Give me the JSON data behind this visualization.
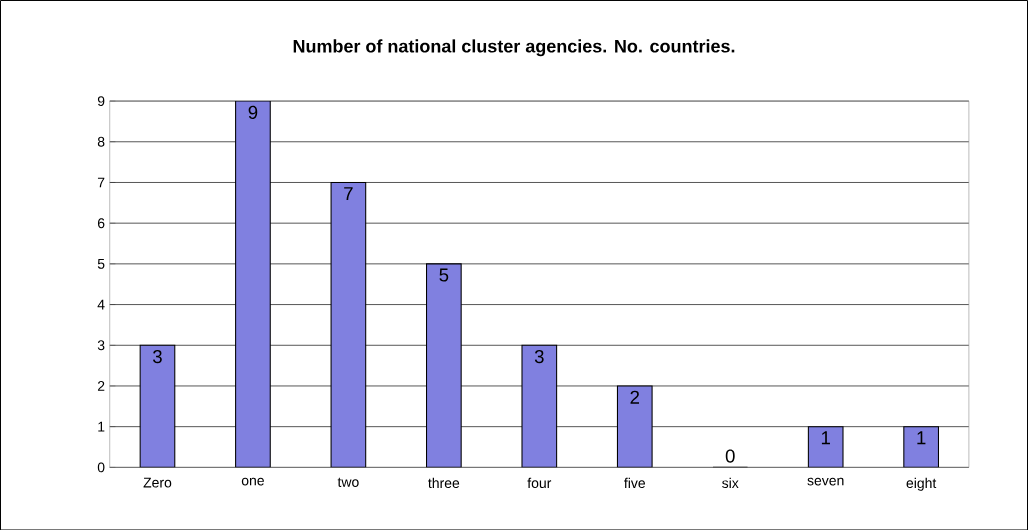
{
  "chart_data": {
    "type": "bar",
    "title": "Number of national cluster agencies. No. countries.",
    "categories": [
      "Zero",
      "one",
      "two",
      "three",
      "four",
      "five",
      "six",
      "seven",
      "eight"
    ],
    "values": [
      3,
      9,
      7,
      5,
      3,
      2,
      0,
      1,
      1
    ],
    "color": "#8080e0",
    "ylim": [
      0,
      9
    ],
    "yticks": [
      0,
      1,
      2,
      3,
      4,
      5,
      6,
      7,
      8,
      9
    ],
    "grid": "y",
    "data_labels": true
  }
}
